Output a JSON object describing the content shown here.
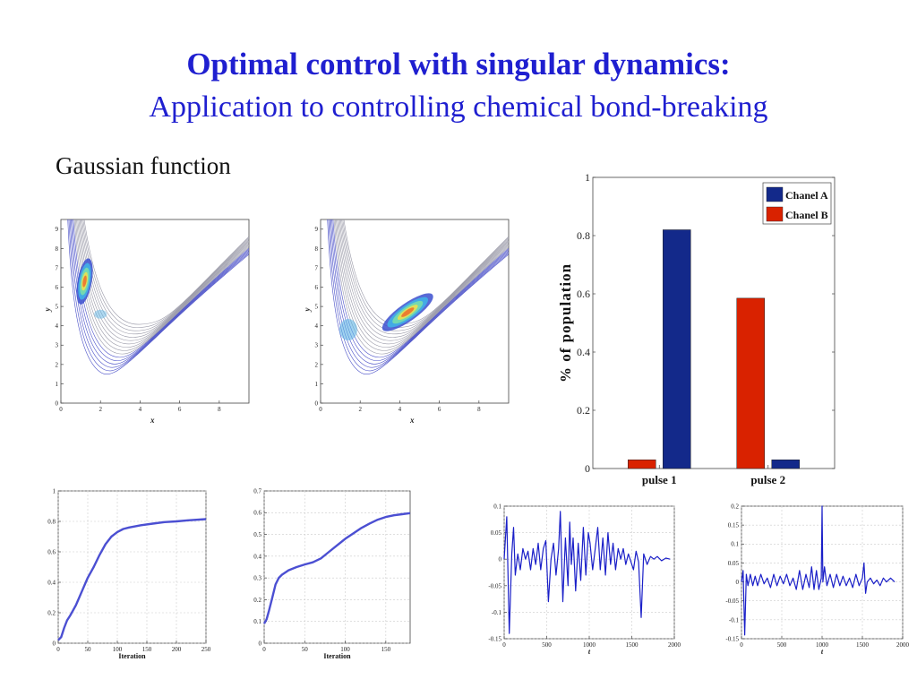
{
  "slide": {
    "title": "Optimal control with singular dynamics:",
    "subtitle": "Application to controlling chemical bond-breaking",
    "section_label": "Gaussian function"
  },
  "colors": {
    "title": "#1f1fd0",
    "chanel_a": "#13298a",
    "chanel_b": "#d92200",
    "curve": "#4b4fd2",
    "contour": "#7a7fd0"
  },
  "chart_data": [
    {
      "id": "contour-left",
      "type": "contour",
      "xlabel": "x",
      "ylabel": "y",
      "xlim": [
        0,
        9.5
      ],
      "ylim": [
        0,
        9.5
      ],
      "x_ticks": [
        "0",
        "2",
        "4",
        "6",
        "8"
      ],
      "y_ticks": [
        "0",
        "1",
        "2",
        "3",
        "4",
        "5",
        "6",
        "7",
        "8",
        "9"
      ],
      "hotspot": {
        "x": 1.2,
        "y": 6.3
      }
    },
    {
      "id": "contour-right",
      "type": "contour",
      "xlabel": "x",
      "ylabel": "y",
      "xlim": [
        0,
        9.5
      ],
      "ylim": [
        0,
        9.5
      ],
      "x_ticks": [
        "0",
        "2",
        "4",
        "6",
        "8"
      ],
      "y_ticks": [
        "0",
        "1",
        "2",
        "3",
        "4",
        "5",
        "6",
        "7",
        "8",
        "9"
      ],
      "hotspot": {
        "x": 4.4,
        "y": 4.7
      }
    },
    {
      "id": "bar-population",
      "type": "bar",
      "categories": [
        "pulse 1",
        "pulse 2"
      ],
      "series": [
        {
          "name": "Chanel A",
          "values": [
            0.82,
            0.03
          ]
        },
        {
          "name": "Chanel B",
          "values": [
            0.03,
            0.585
          ]
        }
      ],
      "ylabel": "% of population",
      "ylim": [
        0,
        1
      ],
      "y_ticks": [
        "0",
        "0.2",
        "0.4",
        "0.6",
        "0.8",
        "1"
      ],
      "legend": "top-right"
    },
    {
      "id": "convergence-a",
      "type": "line",
      "xlabel": "Iteration",
      "xlim": [
        0,
        250
      ],
      "ylim": [
        0,
        1
      ],
      "x_ticks": [
        "0",
        "50",
        "100",
        "150",
        "200",
        "250"
      ],
      "y_ticks": [
        "0",
        "0.2",
        "0.4",
        "0.6",
        "0.8",
        "1"
      ],
      "x": [
        0,
        5,
        10,
        15,
        20,
        30,
        40,
        50,
        60,
        70,
        80,
        90,
        100,
        110,
        120,
        140,
        160,
        180,
        200,
        220,
        250
      ],
      "y": [
        0.02,
        0.04,
        0.1,
        0.15,
        0.18,
        0.25,
        0.34,
        0.43,
        0.5,
        0.58,
        0.65,
        0.7,
        0.73,
        0.75,
        0.76,
        0.775,
        0.785,
        0.795,
        0.8,
        0.807,
        0.815
      ]
    },
    {
      "id": "convergence-b",
      "type": "line",
      "xlabel": "Iteration",
      "xlim": [
        0,
        180
      ],
      "ylim": [
        0,
        0.7
      ],
      "x_ticks": [
        "0",
        "50",
        "100",
        "150"
      ],
      "y_ticks": [
        "0",
        "0.1",
        "0.2",
        "0.3",
        "0.4",
        "0.5",
        "0.6",
        "0.7"
      ],
      "x": [
        0,
        3,
        6,
        10,
        14,
        18,
        22,
        26,
        30,
        40,
        50,
        60,
        70,
        80,
        90,
        100,
        110,
        120,
        130,
        140,
        150,
        160,
        170,
        180
      ],
      "y": [
        0.09,
        0.11,
        0.15,
        0.21,
        0.27,
        0.3,
        0.315,
        0.325,
        0.335,
        0.35,
        0.362,
        0.372,
        0.39,
        0.42,
        0.45,
        0.48,
        0.505,
        0.53,
        0.55,
        0.568,
        0.58,
        0.588,
        0.593,
        0.598
      ]
    },
    {
      "id": "pulse-a",
      "type": "line",
      "xlabel": "t",
      "xlim": [
        0,
        2000
      ],
      "ylim": [
        -0.15,
        0.1
      ],
      "x_ticks": [
        "0",
        "500",
        "1000",
        "1500",
        "2000"
      ],
      "y_ticks": [
        "-0.15",
        "-0.1",
        "-0.05",
        "0",
        "0.05",
        "0.1"
      ],
      "x": [
        0,
        30,
        60,
        90,
        110,
        130,
        160,
        190,
        220,
        250,
        280,
        310,
        340,
        370,
        400,
        430,
        460,
        490,
        520,
        550,
        580,
        610,
        640,
        660,
        690,
        720,
        750,
        770,
        790,
        810,
        840,
        870,
        900,
        930,
        960,
        990,
        1010,
        1040,
        1070,
        1100,
        1130,
        1160,
        1190,
        1220,
        1250,
        1280,
        1310,
        1340,
        1370,
        1400,
        1430,
        1460,
        1490,
        1520,
        1550,
        1580,
        1610,
        1640,
        1680,
        1720,
        1760,
        1800,
        1850,
        1900,
        1950
      ],
      "y": [
        0.0,
        0.08,
        -0.14,
        0.01,
        0.06,
        -0.03,
        0.01,
        -0.02,
        0.02,
        0.0,
        0.015,
        -0.02,
        0.02,
        -0.01,
        0.03,
        -0.02,
        0.02,
        0.035,
        -0.08,
        0.0,
        0.03,
        -0.03,
        0.02,
        0.09,
        -0.08,
        0.04,
        -0.05,
        0.07,
        -0.01,
        0.04,
        -0.06,
        0.03,
        -0.04,
        0.06,
        -0.03,
        0.05,
        0.03,
        -0.02,
        0.02,
        0.06,
        -0.02,
        0.04,
        -0.03,
        0.05,
        -0.01,
        0.03,
        -0.02,
        0.02,
        0.0,
        0.02,
        -0.01,
        0.01,
        -0.005,
        -0.02,
        0.015,
        -0.005,
        -0.11,
        0.01,
        -0.01,
        0.005,
        0.0,
        0.005,
        -0.003,
        0.002,
        0.0
      ]
    },
    {
      "id": "pulse-b",
      "type": "line",
      "xlabel": "t",
      "xlim": [
        0,
        2000
      ],
      "ylim": [
        -0.15,
        0.2
      ],
      "x_ticks": [
        "0",
        "500",
        "1000",
        "1500",
        "2000"
      ],
      "y_ticks": [
        "-0.15",
        "-0.1",
        "-0.05",
        "0",
        "0.05",
        "0.1",
        "0.15",
        "0.2"
      ],
      "x": [
        0,
        20,
        40,
        60,
        80,
        110,
        140,
        170,
        200,
        240,
        280,
        320,
        360,
        400,
        440,
        480,
        520,
        560,
        600,
        640,
        680,
        720,
        760,
        800,
        840,
        870,
        900,
        930,
        960,
        990,
        1000,
        1010,
        1030,
        1060,
        1100,
        1140,
        1180,
        1220,
        1260,
        1300,
        1340,
        1380,
        1420,
        1460,
        1500,
        1520,
        1540,
        1560,
        1600,
        1640,
        1680,
        1720,
        1760,
        1800,
        1850,
        1900
      ],
      "y": [
        0.0,
        0.03,
        -0.14,
        0.02,
        -0.01,
        0.02,
        -0.01,
        0.015,
        -0.01,
        0.02,
        -0.005,
        0.01,
        -0.015,
        0.02,
        -0.01,
        0.015,
        -0.005,
        0.02,
        -0.01,
        0.01,
        -0.02,
        0.03,
        -0.02,
        0.02,
        -0.015,
        0.04,
        -0.02,
        0.03,
        -0.02,
        0.01,
        0.2,
        0.0,
        0.04,
        -0.01,
        0.02,
        -0.015,
        0.02,
        -0.01,
        0.015,
        -0.01,
        0.01,
        -0.015,
        0.02,
        -0.01,
        0.01,
        0.05,
        -0.03,
        0.0,
        0.01,
        -0.005,
        0.005,
        -0.01,
        0.01,
        0.0,
        0.01,
        0.0
      ]
    }
  ]
}
